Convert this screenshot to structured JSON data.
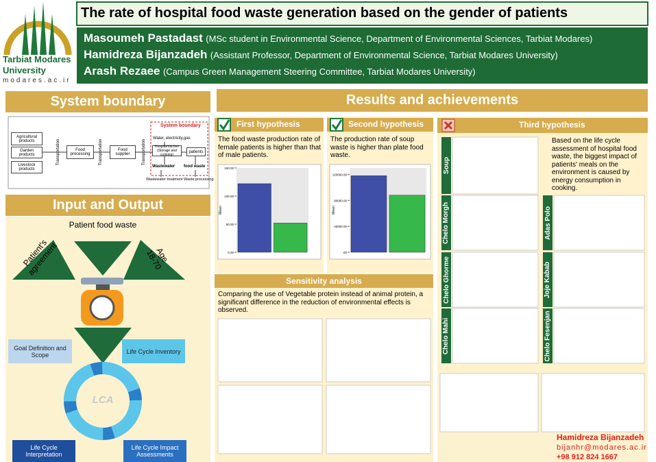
{
  "logo": {
    "name_line1": "Tarbiat Modares",
    "name_line2": "University",
    "url": "modares.ac.ir"
  },
  "header": {
    "title": "The rate of hospital food waste generation based on the gender of patients",
    "authors": [
      {
        "name": "Masoumeh Pastadast",
        "affiliation": "(MSc student in Environmental Science, Department of Environmental Sciences, Tarbiat Modares)"
      },
      {
        "name": "Hamidreza Bijanzadeh",
        "affiliation": "(Assistant Professor, Department of Environmental Science, Tarbiat Modares University)"
      },
      {
        "name": "Arash Rezaee",
        "affiliation": "(Campus Green Management Steering Committee, Tarbiat Modares University)"
      }
    ]
  },
  "system_boundary": {
    "heading": "System boundary",
    "sources": [
      "Agricultural products",
      "Garden products",
      "Livestock products"
    ],
    "transport": "Transportation",
    "processing": "Food processing",
    "supplier": "Food supplier",
    "boundary": "System boundary",
    "utilities": "Water, electricity,gas",
    "kitchen": "Hospital kitchen (Storage and cooking)",
    "patients": "patients",
    "wastewater": "Wastewater",
    "food_waste": "food waste",
    "wastewater_treatment": "Wastewater treatment",
    "waste_processing": "Waste processing"
  },
  "input_output": {
    "heading": "Input and Output",
    "patient_food_waste": "Patient food waste",
    "agreement": "Patient's agreement",
    "age": "Age 18-70",
    "lca": "LCA",
    "phases": [
      "Goal Definition and Scope",
      "Life Cycle Inventory",
      "Life Cycle Interpretation",
      "Life Cycle Impact Assessments"
    ]
  },
  "results": {
    "heading": "Results and achievements",
    "hypotheses": [
      {
        "title": "First hypothesis",
        "text": "The food waste production rate of female patients is higher than that of male patients.",
        "chart": {
          "type": "bar",
          "y_label": "Mean",
          "values": [
            122,
            52
          ],
          "colors": [
            "#3f4fa8",
            "#36b84a"
          ],
          "ylim": [
            0,
            150
          ],
          "yticks": [
            {
              "value": 0,
              "label": "0.00"
            },
            {
              "value": 50,
              "label": "50.00"
            },
            {
              "value": 100,
              "label": "100.00"
            },
            {
              "value": 150,
              "label": "150.00"
            }
          ]
        }
      },
      {
        "title": "Second hypothesis",
        "text": "The production rate of soup waste is higher than plate food waste.",
        "chart": {
          "type": "bar",
          "y_label": "Mean",
          "values": [
            118000,
            88000
          ],
          "colors": [
            "#3f4fa8",
            "#36b84a"
          ],
          "ylim": [
            0,
            130000
          ],
          "yticks": [
            {
              "value": 0,
              "label": ".00"
            },
            {
              "value": 40000,
              "label": "40000.00"
            },
            {
              "value": 80000,
              "label": "80000.00"
            },
            {
              "value": 120000,
              "label": "120000.00"
            }
          ]
        }
      }
    ],
    "third": {
      "title": "Third hypothesis",
      "text": "Based on the life cycle assessment of hospital food waste, the biggest impact of patients' meals on the environment is caused by energy consumption in cooking.",
      "dishes": [
        "Soup",
        "Chelo Morgh",
        "Adas Polo",
        "Chelo Ghorme",
        "Joje Kabab",
        "Chelo Mahi",
        "Chelo Fesenjan"
      ]
    }
  },
  "sensitivity": {
    "heading": "Sensitivity analysis",
    "text": "Comparing the use of Vegetable protein instead of animal protein, a significant difference in the reduction of environmental effects is observed."
  },
  "contact": {
    "name": "Hamidreza Bijanzadeh",
    "email": "bijanhr@modares.ac.ir",
    "phone": "+98 912 824 1667"
  }
}
